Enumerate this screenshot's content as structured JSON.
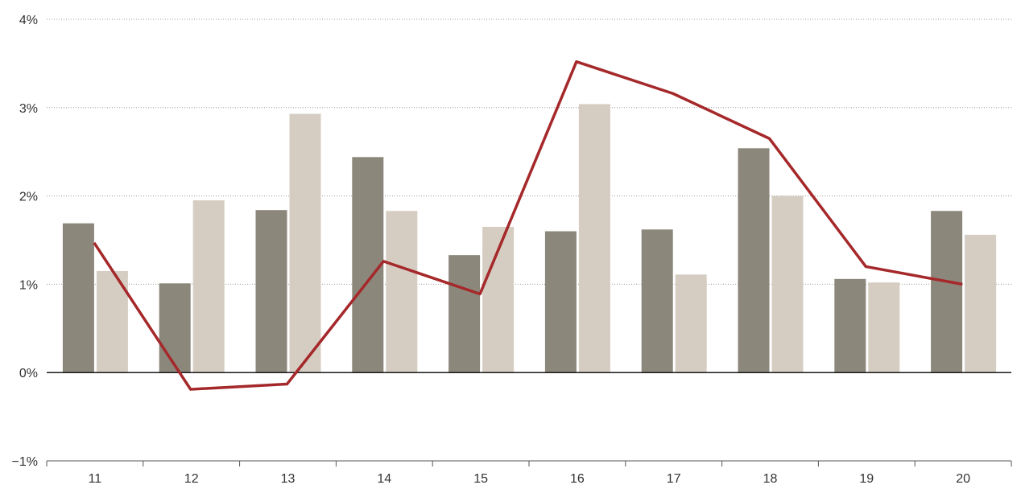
{
  "chart_data": {
    "type": "bar",
    "categories": [
      "11",
      "12",
      "13",
      "14",
      "15",
      "16",
      "17",
      "18",
      "19",
      "20"
    ],
    "series": [
      {
        "type": "bar",
        "color": "#8c877b",
        "values": [
          1.69,
          1.01,
          1.84,
          2.44,
          1.33,
          1.6,
          1.62,
          2.54,
          1.06,
          1.83
        ]
      },
      {
        "type": "bar",
        "color": "#d5cdc2",
        "values": [
          1.15,
          1.95,
          2.93,
          1.83,
          1.65,
          3.04,
          1.11,
          2.0,
          1.02,
          1.56
        ]
      },
      {
        "type": "line",
        "color": "#a5282a",
        "values": [
          1.47,
          -0.19,
          -0.13,
          1.26,
          0.89,
          3.52,
          3.16,
          2.65,
          1.2,
          1.0
        ]
      }
    ],
    "ylim": [
      -1,
      4
    ],
    "yticks": [
      -1,
      0,
      1,
      2,
      3,
      4
    ],
    "ytick_labels": [
      "−1%",
      "0%",
      "1%",
      "2%",
      "3%",
      "4%"
    ],
    "grid": true,
    "xlabel": "",
    "ylabel": "",
    "title": ""
  }
}
